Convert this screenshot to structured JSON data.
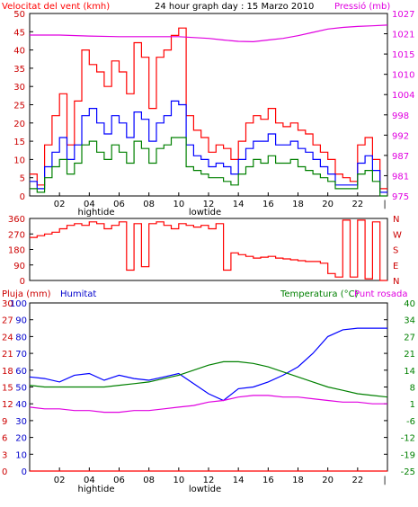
{
  "header": {
    "wind_title": "Velocitat del vent (kmh)",
    "graph_title": "24 hour graph day : 15 Marzo 2010",
    "pressure_title": "Pressió (mb)"
  },
  "colors": {
    "red": "#ff0000",
    "green": "#008000",
    "blue": "#0000ff",
    "magenta": "#e000e0",
    "dark_red": "#cc0000",
    "frame": "#000000"
  },
  "chart_data": [
    {
      "type": "line",
      "title": "24 hour graph day : 15 Marzo 2010",
      "ylabel": "Velocitat del vent (kmh)",
      "ylabel_right": "Pressió (mb)",
      "ylim": [
        0,
        50
      ],
      "y2lim": [
        975,
        1030
      ],
      "y_ticks": [
        "0",
        "5",
        "10",
        "15",
        "20",
        "25",
        "30",
        "35",
        "40",
        "45",
        "50"
      ],
      "y2_ticks": [
        "975",
        "981",
        "987",
        "992",
        "998",
        "1004",
        "1010",
        "1015",
        "1021",
        "1027"
      ],
      "x_ticks": [
        "02",
        "04",
        "06",
        "08",
        "10",
        "12",
        "14",
        "16",
        "18",
        "20",
        "22"
      ],
      "tide_labels": [
        "hightide",
        "lowtide"
      ],
      "xlim": [
        0,
        24
      ],
      "series": [
        {
          "color": "#ff0000",
          "axis": "left",
          "x": [
            0,
            0.5,
            1,
            1.5,
            2,
            2.5,
            3,
            3.5,
            4,
            4.5,
            5,
            5.5,
            6,
            6.5,
            7,
            7.5,
            8,
            8.5,
            9,
            9.5,
            10,
            10.5,
            11,
            11.5,
            12,
            12.5,
            13,
            13.5,
            14,
            14.5,
            15,
            15.5,
            16,
            16.5,
            17,
            17.5,
            18,
            18.5,
            19,
            19.5,
            20,
            20.5,
            21,
            21.5,
            22,
            22.5,
            23,
            23.5
          ],
          "values": [
            6,
            3,
            14,
            22,
            28,
            14,
            26,
            40,
            36,
            34,
            30,
            37,
            34,
            28,
            42,
            38,
            24,
            38,
            40,
            44,
            46,
            22,
            18,
            16,
            12,
            14,
            13,
            10,
            15,
            20,
            22,
            21,
            24,
            20,
            19,
            20,
            18,
            17,
            14,
            12,
            10,
            6,
            5,
            4,
            14,
            16,
            10,
            2
          ]
        },
        {
          "color": "#0000ff",
          "axis": "left",
          "x": [
            0,
            0.5,
            1,
            1.5,
            2,
            2.5,
            3,
            3.5,
            4,
            4.5,
            5,
            5.5,
            6,
            6.5,
            7,
            7.5,
            8,
            8.5,
            9,
            9.5,
            10,
            10.5,
            11,
            11.5,
            12,
            12.5,
            13,
            13.5,
            14,
            14.5,
            15,
            15.5,
            16,
            16.5,
            17,
            17.5,
            18,
            18.5,
            19,
            19.5,
            20,
            20.5,
            21,
            21.5,
            22,
            22.5,
            23,
            23.5
          ],
          "values": [
            4,
            2,
            8,
            12,
            16,
            10,
            14,
            22,
            24,
            20,
            17,
            22,
            20,
            16,
            23,
            21,
            15,
            20,
            22,
            26,
            25,
            14,
            11,
            10,
            8,
            9,
            8,
            6,
            10,
            13,
            15,
            15,
            17,
            14,
            14,
            15,
            13,
            12,
            10,
            8,
            6,
            3,
            3,
            3,
            9,
            11,
            7,
            1
          ]
        },
        {
          "color": "#008000",
          "axis": "left",
          "x": [
            0,
            0.5,
            1,
            1.5,
            2,
            2.5,
            3,
            3.5,
            4,
            4.5,
            5,
            5.5,
            6,
            6.5,
            7,
            7.5,
            8,
            8.5,
            9,
            9.5,
            10,
            10.5,
            11,
            11.5,
            12,
            12.5,
            13,
            13.5,
            14,
            14.5,
            15,
            15.5,
            16,
            16.5,
            17,
            17.5,
            18,
            18.5,
            19,
            19.5,
            20,
            20.5,
            21,
            21.5,
            22,
            22.5,
            23,
            23.5
          ],
          "values": [
            2,
            1,
            5,
            8,
            10,
            6,
            9,
            14,
            15,
            12,
            10,
            14,
            12,
            9,
            15,
            13,
            9,
            13,
            14,
            16,
            16,
            8,
            7,
            6,
            5,
            5,
            4,
            3,
            6,
            8,
            10,
            9,
            11,
            9,
            9,
            10,
            8,
            7,
            6,
            5,
            4,
            2,
            2,
            2,
            6,
            7,
            4,
            0
          ]
        },
        {
          "name": "Pressió (mb)",
          "color": "#e000e0",
          "axis": "right",
          "x": [
            0,
            2,
            4,
            6,
            8,
            10,
            12,
            13,
            14,
            15,
            16,
            17,
            18,
            19,
            20,
            21,
            22,
            23,
            24
          ],
          "values": [
            1023.5,
            1023.5,
            1023.2,
            1023,
            1023,
            1023,
            1022.5,
            1022,
            1021.6,
            1021.5,
            1022,
            1022.5,
            1023.3,
            1024.3,
            1025.3,
            1025.8,
            1026.1,
            1026.3,
            1026.5
          ]
        }
      ]
    },
    {
      "type": "line",
      "title": "",
      "ylabel": "",
      "ylim": [
        0,
        360
      ],
      "y_ticks": [
        "0",
        "90",
        "180",
        "270",
        "360"
      ],
      "y_labels_right": [
        "N",
        "W",
        "S",
        "E",
        "N"
      ],
      "xlim": [
        0,
        24
      ],
      "series": [
        {
          "color": "#ff0000",
          "x": [
            0,
            0.5,
            1,
            1.5,
            2,
            2.5,
            3,
            3.5,
            4,
            4.5,
            5,
            5.5,
            6,
            6.5,
            7,
            7.5,
            8,
            8.5,
            9,
            9.5,
            10,
            10.5,
            11,
            11.5,
            12,
            12.5,
            13,
            13.5,
            14,
            14.5,
            15,
            15.5,
            16,
            16.5,
            17,
            17.5,
            18,
            18.5,
            19,
            19.5,
            20,
            20.5,
            21,
            21.5,
            22,
            22.5,
            23,
            23.5
          ],
          "values": [
            250,
            260,
            270,
            280,
            300,
            320,
            330,
            320,
            340,
            330,
            300,
            320,
            340,
            60,
            330,
            80,
            330,
            340,
            320,
            300,
            330,
            320,
            310,
            320,
            300,
            330,
            60,
            160,
            150,
            140,
            130,
            135,
            140,
            130,
            125,
            120,
            115,
            110,
            110,
            100,
            40,
            20,
            350,
            20,
            350,
            10,
            340,
            0
          ]
        }
      ]
    },
    {
      "type": "line",
      "title": "",
      "ylabel": "Pluja (mm)",
      "ylabel2": "Humitat",
      "ylabel_right": "Temperatura (°C)",
      "ylabel_right2": "Punt rosada",
      "ylim": [
        0,
        100
      ],
      "y_ticks_pluja": [
        "0",
        "3",
        "6",
        "9",
        "12",
        "15",
        "18",
        "21",
        "24",
        "27",
        "30"
      ],
      "y_ticks_humitat": [
        "0",
        "10",
        "20",
        "30",
        "40",
        "50",
        "60",
        "70",
        "80",
        "90",
        "100"
      ],
      "y_ticks_temp": [
        "-25",
        "-19",
        "-12",
        "-6",
        "1",
        "8",
        "14",
        "21",
        "27",
        "34",
        "40"
      ],
      "x_ticks": [
        "02",
        "04",
        "06",
        "08",
        "10",
        "12",
        "14",
        "16",
        "18",
        "20",
        "22"
      ],
      "tide_labels": [
        "hightide",
        "lowtide"
      ],
      "xlim": [
        0,
        24
      ],
      "series": [
        {
          "name": "Humitat",
          "color": "#0000ff",
          "x": [
            0,
            1,
            2,
            3,
            4,
            5,
            6,
            7,
            8,
            9,
            10,
            11,
            12,
            13,
            14,
            15,
            16,
            17,
            18,
            19,
            20,
            21,
            22,
            23,
            24
          ],
          "values": [
            56,
            55,
            53,
            57,
            58,
            54,
            57,
            55,
            54,
            56,
            58,
            52,
            46,
            42,
            49,
            50,
            53,
            57,
            62,
            70,
            80,
            84,
            85,
            85,
            85
          ]
        },
        {
          "name": "Temperatura (°C)",
          "color": "#008000",
          "x": [
            0,
            1,
            2,
            3,
            4,
            5,
            6,
            7,
            8,
            9,
            10,
            11,
            12,
            13,
            14,
            15,
            16,
            17,
            18,
            19,
            20,
            21,
            22,
            23,
            24
          ],
          "values": [
            51,
            50,
            50,
            50,
            50,
            50,
            51,
            52,
            53,
            55,
            57,
            60,
            63,
            65,
            65,
            64,
            62,
            59,
            56,
            53,
            50,
            48,
            46,
            45,
            44
          ]
        },
        {
          "name": "Punt rosada",
          "color": "#e000e0",
          "x": [
            0,
            1,
            2,
            3,
            4,
            5,
            6,
            7,
            8,
            9,
            10,
            11,
            12,
            13,
            14,
            15,
            16,
            17,
            18,
            19,
            20,
            21,
            22,
            23,
            24
          ],
          "values": [
            38,
            37,
            37,
            36,
            36,
            35,
            35,
            36,
            36,
            37,
            38,
            39,
            41,
            42,
            44,
            45,
            45,
            44,
            44,
            43,
            42,
            41,
            41,
            40,
            40
          ]
        },
        {
          "name": "Pluja (mm)",
          "color": "#ff0000",
          "x": [
            0,
            24
          ],
          "values": [
            0,
            0
          ]
        }
      ]
    }
  ]
}
